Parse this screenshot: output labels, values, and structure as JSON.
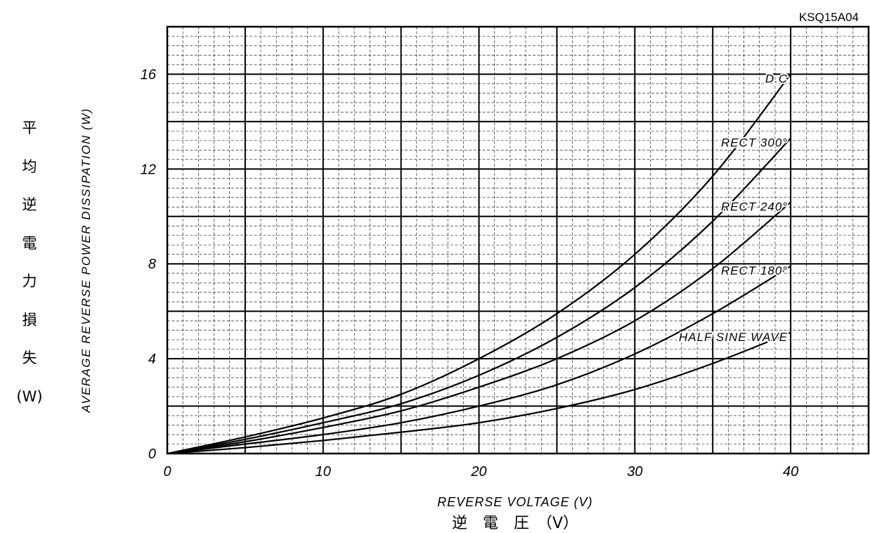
{
  "chart_data": {
    "type": "line",
    "code": "KSQ15A04",
    "ylabel": "AVERAGE REVERSE POWER DISSIPATION (W)",
    "ylabel_jp_chars": [
      "平",
      "均",
      "逆",
      "電",
      "力",
      "損",
      "失",
      "(W)"
    ],
    "xlabel": "REVERSE VOLTAGE (V)",
    "xlabel_jp": "逆　電　圧　（V）",
    "xlim": [
      0,
      45
    ],
    "ylim": [
      0,
      18
    ],
    "x_ticks": [
      0,
      10,
      20,
      30,
      40
    ],
    "y_ticks": [
      0,
      4,
      8,
      12,
      16
    ],
    "x_tick_labels": [
      "0",
      "10",
      "20",
      "30",
      "40"
    ],
    "y_tick_labels": [
      "0",
      "4",
      "8",
      "12",
      "16"
    ],
    "grid": true,
    "x_major_step": 5,
    "y_major_step": 2,
    "x_minor_step": 1,
    "y_minor_step": 0.4,
    "x": [
      0,
      5,
      10,
      15,
      20,
      25,
      30,
      35,
      40
    ],
    "series": [
      {
        "name": "D.C",
        "values": [
          0,
          0.7,
          1.5,
          2.5,
          4.0,
          5.9,
          8.4,
          11.7,
          16.0
        ]
      },
      {
        "name": "RECT 300°",
        "values": [
          0,
          0.6,
          1.3,
          2.1,
          3.3,
          4.9,
          7.0,
          9.8,
          13.3
        ]
      },
      {
        "name": "RECT 240°",
        "values": [
          0,
          0.5,
          1.1,
          1.8,
          2.8,
          4.0,
          5.6,
          7.8,
          10.6
        ]
      },
      {
        "name": "RECT 180°",
        "values": [
          0,
          0.4,
          0.8,
          1.3,
          2.0,
          2.9,
          4.2,
          5.9,
          7.9
        ]
      },
      {
        "name": "HALF SINE WAVE",
        "values": [
          0,
          0.25,
          0.55,
          0.9,
          1.3,
          1.9,
          2.7,
          3.8,
          5.1
        ]
      }
    ]
  }
}
